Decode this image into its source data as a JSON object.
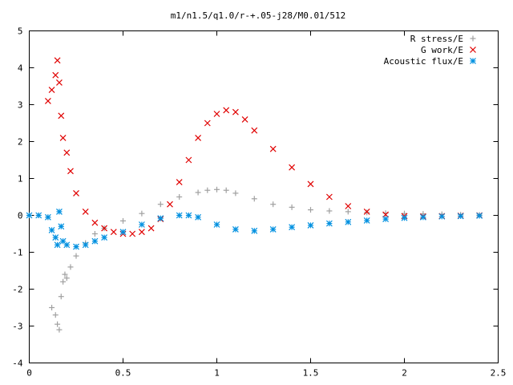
{
  "chart_data": {
    "type": "scatter",
    "title": "m1/n1.5/q1.0/r-+.05-j28/M0.01/512",
    "xlabel": "",
    "ylabel": "",
    "xlim": [
      0,
      2.5
    ],
    "ylim": [
      -4,
      5
    ],
    "xticks": [
      "0",
      "0.5",
      "1",
      "1.5",
      "2",
      "2.5"
    ],
    "yticks": [
      "-4",
      "-3",
      "-2",
      "-1",
      "0",
      "1",
      "2",
      "3",
      "4",
      "5"
    ],
    "grid": false,
    "legend_position": "top-right",
    "series": [
      {
        "name": "R stress/E",
        "marker": "plus",
        "color": "#a0a0a0",
        "x": [
          0.0,
          0.05,
          0.1,
          0.12,
          0.14,
          0.15,
          0.16,
          0.17,
          0.18,
          0.19,
          0.2,
          0.22,
          0.25,
          0.3,
          0.35,
          0.4,
          0.5,
          0.6,
          0.7,
          0.8,
          0.9,
          0.95,
          1.0,
          1.05,
          1.1,
          1.2,
          1.3,
          1.4,
          1.5,
          1.6,
          1.7,
          1.8,
          1.9,
          2.0,
          2.1,
          2.2,
          2.3,
          2.4
        ],
        "y": [
          0.0,
          0.0,
          -0.05,
          -2.5,
          -2.7,
          -2.95,
          -3.1,
          -2.2,
          -1.8,
          -1.6,
          -1.7,
          -1.4,
          -1.1,
          -0.75,
          -0.5,
          -0.35,
          -0.15,
          0.05,
          0.3,
          0.5,
          0.62,
          0.68,
          0.7,
          0.68,
          0.6,
          0.45,
          0.3,
          0.22,
          0.15,
          0.12,
          0.1,
          0.08,
          0.06,
          0.05,
          0.04,
          0.03,
          0.02,
          0.01
        ]
      },
      {
        "name": "G work/E",
        "marker": "cross",
        "color": "#e00000",
        "x": [
          0.1,
          0.12,
          0.14,
          0.15,
          0.16,
          0.17,
          0.18,
          0.2,
          0.22,
          0.25,
          0.3,
          0.35,
          0.4,
          0.45,
          0.5,
          0.55,
          0.6,
          0.65,
          0.7,
          0.75,
          0.8,
          0.85,
          0.9,
          0.95,
          1.0,
          1.05,
          1.1,
          1.15,
          1.2,
          1.3,
          1.4,
          1.5,
          1.6,
          1.7,
          1.8,
          1.9,
          2.0,
          2.1,
          2.2,
          2.3,
          2.4
        ],
        "y": [
          3.1,
          3.4,
          3.8,
          4.2,
          3.6,
          2.7,
          2.1,
          1.7,
          1.2,
          0.6,
          0.1,
          -0.2,
          -0.35,
          -0.45,
          -0.5,
          -0.5,
          -0.45,
          -0.35,
          -0.1,
          0.3,
          0.9,
          1.5,
          2.1,
          2.5,
          2.75,
          2.85,
          2.8,
          2.6,
          2.3,
          1.8,
          1.3,
          0.85,
          0.5,
          0.25,
          0.1,
          0.02,
          -0.02,
          -0.03,
          -0.02,
          -0.01,
          0.0
        ]
      },
      {
        "name": "Acoustic flux/E",
        "marker": "star",
        "color": "#0090e0",
        "x": [
          0.0,
          0.05,
          0.1,
          0.12,
          0.14,
          0.15,
          0.16,
          0.17,
          0.18,
          0.2,
          0.25,
          0.3,
          0.35,
          0.4,
          0.5,
          0.6,
          0.7,
          0.8,
          0.85,
          0.9,
          1.0,
          1.1,
          1.2,
          1.3,
          1.4,
          1.5,
          1.6,
          1.7,
          1.8,
          1.9,
          2.0,
          2.1,
          2.2,
          2.3,
          2.4
        ],
        "y": [
          0.0,
          0.0,
          -0.05,
          -0.4,
          -0.6,
          -0.8,
          0.1,
          -0.3,
          -0.7,
          -0.8,
          -0.85,
          -0.8,
          -0.7,
          -0.6,
          -0.45,
          -0.25,
          -0.08,
          0.0,
          0.0,
          -0.05,
          -0.25,
          -0.38,
          -0.42,
          -0.38,
          -0.32,
          -0.27,
          -0.22,
          -0.18,
          -0.14,
          -0.1,
          -0.07,
          -0.05,
          -0.03,
          -0.02,
          -0.01
        ]
      }
    ]
  }
}
